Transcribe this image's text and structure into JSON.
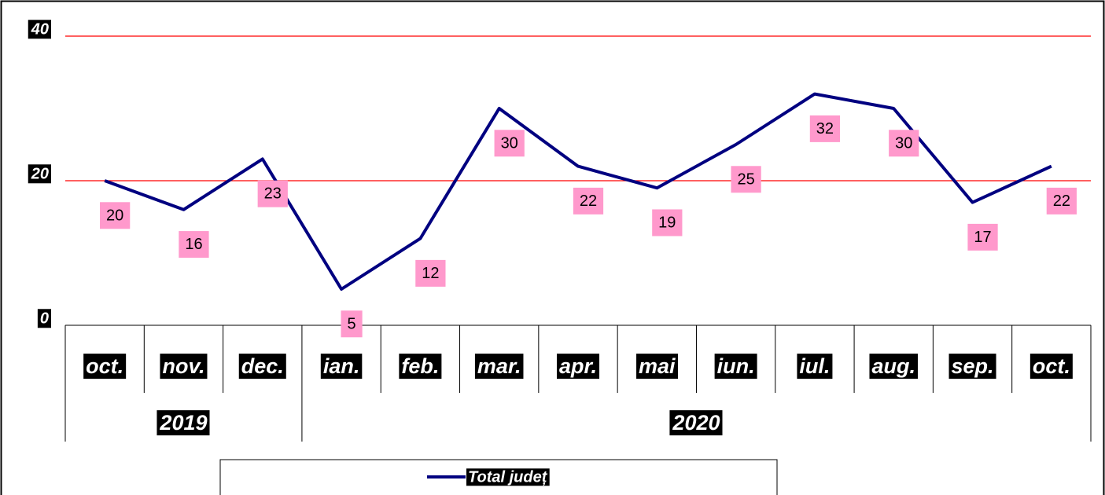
{
  "chart_data": {
    "type": "line",
    "categories": [
      "oct.",
      "nov.",
      "dec.",
      "ian.",
      "feb.",
      "mar.",
      "apr.",
      "mai",
      "iun.",
      "iul.",
      "aug.",
      "sep.",
      "oct."
    ],
    "years": [
      "2019",
      "2019",
      "2019",
      "2020",
      "2020",
      "2020",
      "2020",
      "2020",
      "2020",
      "2020",
      "2020",
      "2020",
      "2020"
    ],
    "series": [
      {
        "name": "Total județ",
        "color": "#000080",
        "values": [
          20,
          16,
          23,
          5,
          12,
          30,
          22,
          19,
          25,
          32,
          30,
          17,
          22
        ]
      }
    ],
    "ylim": [
      0,
      40
    ],
    "yticks": [
      0,
      20,
      40
    ],
    "grid": true,
    "grid_color": "#ff0000",
    "label_color": "#ff99cc"
  }
}
